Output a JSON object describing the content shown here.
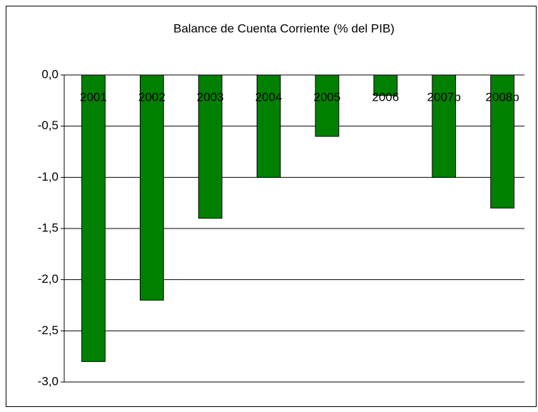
{
  "chart_data": {
    "type": "bar",
    "title": "Balance de Cuenta Corriente (% del PIB)",
    "categories": [
      "2001",
      "2002",
      "2003",
      "2004",
      "2005",
      "2006",
      "2007p",
      "2008p"
    ],
    "values": [
      -2.8,
      -2.2,
      -1.4,
      -1.0,
      -0.6,
      -0.2,
      -1.0,
      -1.3
    ],
    "color": "#008000",
    "ylim": [
      -3,
      0
    ],
    "yticks": [
      {
        "value": 0,
        "label": "0,0"
      },
      {
        "value": -0.5,
        "label": "-0,5"
      },
      {
        "value": -1,
        "label": "-1,0"
      },
      {
        "value": -1.5,
        "label": "-1,5"
      },
      {
        "value": -2,
        "label": "-2,0"
      },
      {
        "value": -2.5,
        "label": "-2,5"
      },
      {
        "value": -3,
        "label": "-3,0"
      }
    ],
    "grid": true
  }
}
